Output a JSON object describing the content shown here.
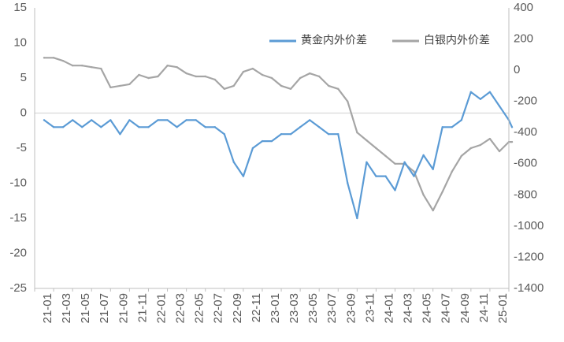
{
  "chart_data": {
    "type": "line",
    "title": "",
    "xlabel": "",
    "ylabel": "",
    "x_tick_labels": [
      "21-01",
      "21-03",
      "21-05",
      "21-07",
      "21-09",
      "21-11",
      "22-01",
      "22-03",
      "22-05",
      "22-07",
      "22-09",
      "22-11",
      "23-01",
      "23-03",
      "23-05",
      "23-07",
      "23-09",
      "23-11",
      "24-01",
      "24-03",
      "24-05",
      "24-07",
      "24-09",
      "24-11",
      "25-01"
    ],
    "left_axis": {
      "ylim": [
        -25,
        15
      ],
      "ticks": [
        15,
        10,
        5,
        0,
        -5,
        -10,
        -15,
        -20,
        -25
      ],
      "tick_labels": [
        "15",
        "10",
        "5",
        "0",
        "-5",
        "-10",
        "-15",
        "-20",
        "-25"
      ]
    },
    "right_axis": {
      "ylim": [
        -1400,
        400
      ],
      "ticks": [
        400,
        200,
        0,
        -200,
        -400,
        -600,
        -800,
        -1000,
        -1200,
        -1400
      ],
      "tick_labels": [
        "400",
        "200",
        "0",
        "-200",
        "-400",
        "-600",
        "-800",
        "-1000",
        "-1200",
        "-1400"
      ]
    },
    "zero_line": true,
    "legend_position": "top-right",
    "series": [
      {
        "name": "黄金内外价差",
        "axis": "left",
        "color": "#5B9BD5",
        "x": [
          "21-01",
          "21-02",
          "21-03",
          "21-04",
          "21-05",
          "21-06",
          "21-07",
          "21-08",
          "21-09",
          "21-10",
          "21-11",
          "21-12",
          "22-01",
          "22-02",
          "22-03",
          "22-04",
          "22-05",
          "22-06",
          "22-07",
          "22-08",
          "22-09",
          "22-10",
          "22-11",
          "22-12",
          "23-01",
          "23-02",
          "23-03",
          "23-04",
          "23-05",
          "23-06",
          "23-07",
          "23-08",
          "23-09",
          "23-10",
          "23-11",
          "23-12",
          "24-01",
          "24-02",
          "24-03",
          "24-04",
          "24-05",
          "24-06",
          "24-07",
          "24-08",
          "24-09",
          "24-10",
          "24-11",
          "24-12",
          "25-01",
          "25-02",
          "25-03"
        ],
        "values": [
          -1,
          -2,
          -2,
          -1,
          -2,
          -1,
          -2,
          -1,
          -3,
          -1,
          -2,
          -2,
          -1,
          -1,
          -2,
          -1,
          -1,
          -2,
          -2,
          -3,
          -7,
          -9,
          -5,
          -4,
          -4,
          -3,
          -3,
          -2,
          -1,
          -2,
          -3,
          -3,
          -10,
          -15,
          -7,
          -9,
          -9,
          -11,
          -7,
          -9,
          -6,
          -8,
          -2,
          -2,
          -1,
          3,
          2,
          3,
          1,
          -1,
          -2
        ]
      },
      {
        "name": "白银内外价差",
        "axis": "right",
        "color": "#A5A5A5",
        "x": [
          "21-01",
          "21-02",
          "21-03",
          "21-04",
          "21-05",
          "21-06",
          "21-07",
          "21-08",
          "21-09",
          "21-10",
          "21-11",
          "21-12",
          "22-01",
          "22-02",
          "22-03",
          "22-04",
          "22-05",
          "22-06",
          "22-07",
          "22-08",
          "22-09",
          "22-10",
          "22-11",
          "22-12",
          "23-01",
          "23-02",
          "23-03",
          "23-04",
          "23-05",
          "23-06",
          "23-07",
          "23-08",
          "23-09",
          "23-10",
          "23-11",
          "23-12",
          "24-01",
          "24-02",
          "24-03",
          "24-04",
          "24-05",
          "24-06",
          "24-07",
          "24-08",
          "24-09",
          "24-10",
          "24-11",
          "24-12",
          "25-01",
          "25-02",
          "25-03"
        ],
        "values": [
          80,
          80,
          60,
          30,
          30,
          20,
          10,
          -110,
          -100,
          -90,
          -30,
          -50,
          -40,
          30,
          20,
          -20,
          -40,
          -40,
          -60,
          -120,
          -100,
          -10,
          10,
          -30,
          -50,
          -100,
          -120,
          -50,
          -20,
          -40,
          -100,
          -120,
          -200,
          -400,
          -450,
          -500,
          -550,
          -600,
          -600,
          -650,
          -800,
          -900,
          -780,
          -650,
          -550,
          -500,
          -480,
          -440,
          -520,
          -460,
          -460
        ]
      }
    ]
  }
}
